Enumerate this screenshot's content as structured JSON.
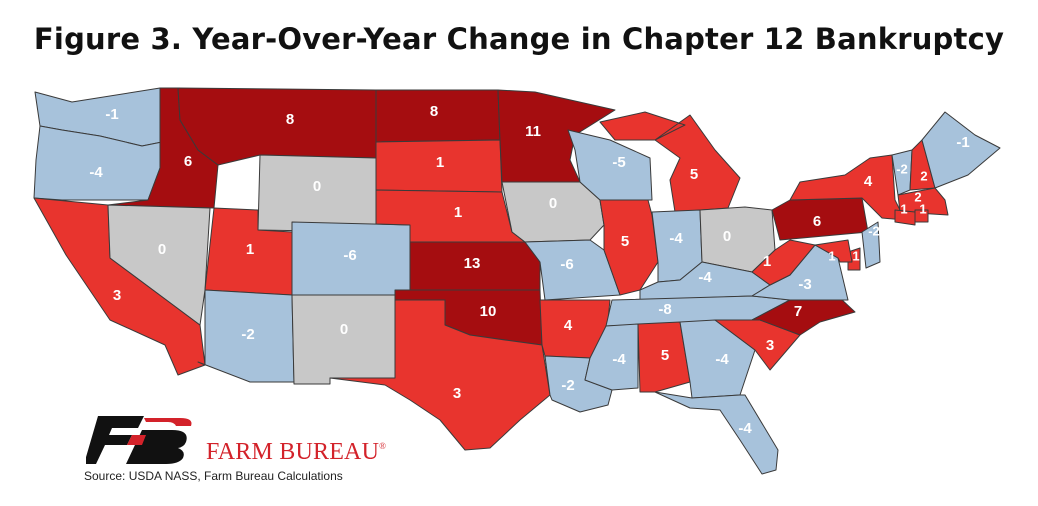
{
  "title": "Figure 3. Year-Over-Year Change in Chapter 12 Bankruptcy",
  "colors": {
    "strong_increase": "#a50d10",
    "increase": "#e8342e",
    "no_change": "#c8c8c8",
    "decrease": "#a7c2db",
    "border": "#3a3a3a"
  },
  "legend_brand": "FARM BUREAU",
  "brand_mark": "®",
  "logo_icon": "farm-bureau-fb-logo",
  "source": "Source: USDA NASS, Farm Bureau Calculations",
  "map_data": {
    "metric": "Year-over-year change in Chapter 12 bankruptcy filings",
    "states": {
      "WA": -1,
      "OR": -4,
      "CA": 3,
      "ID": 6,
      "NV": 0,
      "MT": 8,
      "WY": 0,
      "UT": 1,
      "AZ": -2,
      "CO": -6,
      "NM": 0,
      "ND": 8,
      "SD": 1,
      "NE": 1,
      "KS": 13,
      "OK": 10,
      "TX": 3,
      "MN": 11,
      "IA": 0,
      "MO": -6,
      "AR": 4,
      "LA": -2,
      "WI": -5,
      "IL": 5,
      "MI": 5,
      "IN": -4,
      "OH": 0,
      "KY": -4,
      "TN": -8,
      "MS": -4,
      "AL": 5,
      "GA": -4,
      "FL": -4,
      "SC": 3,
      "NC": 7,
      "VA": -3,
      "WV": 1,
      "PA": 6,
      "NY": 4,
      "VT": -2,
      "NH": 2,
      "ME": -1,
      "MA": 2,
      "CT": 1,
      "RI": 1,
      "NJ": -2,
      "DE": 1,
      "MD": 1
    }
  }
}
